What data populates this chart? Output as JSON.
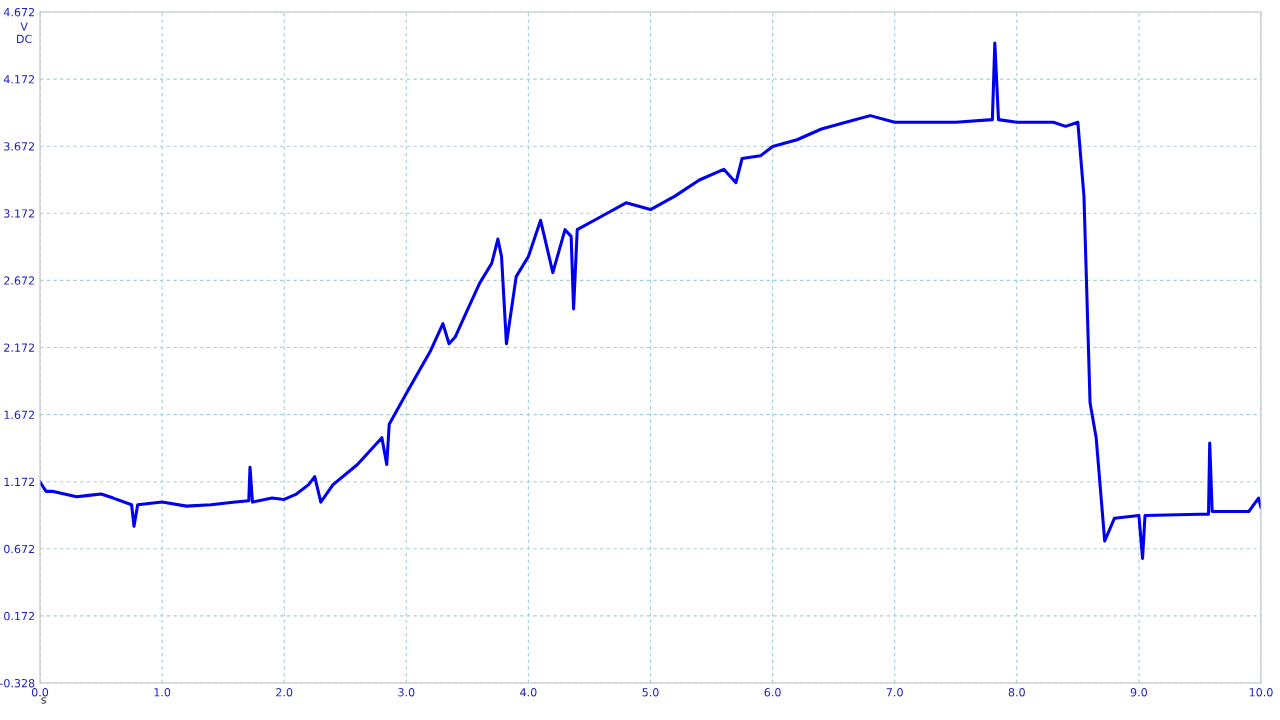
{
  "chart_data": {
    "type": "line",
    "xlabel": "s",
    "ylabel": "V\nDC",
    "x": [
      0.0,
      0.05,
      0.1,
      0.2,
      0.3,
      0.4,
      0.5,
      0.6,
      0.75,
      0.77,
      0.8,
      1.0,
      1.2,
      1.4,
      1.6,
      1.71,
      1.72,
      1.74,
      1.9,
      2.0,
      2.1,
      2.2,
      2.25,
      2.3,
      2.4,
      2.6,
      2.8,
      2.84,
      2.86,
      3.0,
      3.2,
      3.3,
      3.35,
      3.4,
      3.5,
      3.6,
      3.7,
      3.75,
      3.78,
      3.82,
      3.9,
      4.0,
      4.1,
      4.2,
      4.3,
      4.35,
      4.37,
      4.4,
      4.6,
      4.8,
      5.0,
      5.2,
      5.4,
      5.6,
      5.7,
      5.75,
      5.9,
      6.0,
      6.2,
      6.4,
      6.6,
      6.8,
      7.0,
      7.5,
      7.8,
      7.82,
      7.85,
      8.0,
      8.3,
      8.4,
      8.5,
      8.55,
      8.6,
      8.65,
      8.72,
      8.8,
      9.0,
      9.03,
      9.05,
      9.5,
      9.57,
      9.58,
      9.6,
      9.9,
      9.98,
      10.0
    ],
    "series": [
      {
        "color": "#0000ee",
        "values": [
          1.17,
          1.1,
          1.1,
          1.08,
          1.06,
          1.07,
          1.08,
          1.05,
          1.0,
          0.84,
          1.0,
          1.02,
          0.99,
          1.0,
          1.02,
          1.03,
          1.28,
          1.02,
          1.05,
          1.04,
          1.08,
          1.15,
          1.21,
          1.02,
          1.15,
          1.3,
          1.5,
          1.3,
          1.6,
          1.83,
          2.15,
          2.35,
          2.2,
          2.25,
          2.45,
          2.65,
          2.8,
          2.98,
          2.85,
          2.2,
          2.7,
          2.85,
          3.12,
          2.73,
          3.05,
          3.0,
          2.46,
          3.05,
          3.15,
          3.25,
          3.2,
          3.3,
          3.42,
          3.5,
          3.4,
          3.58,
          3.6,
          3.67,
          3.72,
          3.8,
          3.85,
          3.9,
          3.85,
          3.85,
          3.87,
          4.44,
          3.87,
          3.85,
          3.85,
          3.82,
          3.85,
          3.3,
          1.76,
          1.5,
          0.73,
          0.9,
          0.92,
          0.6,
          0.92,
          0.93,
          0.93,
          1.46,
          0.95,
          0.95,
          1.05,
          0.98
        ]
      }
    ],
    "xlim": [
      0,
      10
    ],
    "ylim": [
      -0.328,
      4.672
    ],
    "xticks": [
      {
        "value": 0,
        "label": "0.0"
      },
      {
        "value": 1,
        "label": "1.0"
      },
      {
        "value": 2,
        "label": "2.0"
      },
      {
        "value": 3,
        "label": "3.0"
      },
      {
        "value": 4,
        "label": "4.0"
      },
      {
        "value": 5,
        "label": "5.0"
      },
      {
        "value": 6,
        "label": "6.0"
      },
      {
        "value": 7,
        "label": "7.0"
      },
      {
        "value": 8,
        "label": "8.0"
      },
      {
        "value": 9,
        "label": "9.0"
      },
      {
        "value": 10,
        "label": "10.0"
      }
    ],
    "yticks": [
      -0.328,
      0.172,
      0.672,
      1.172,
      1.672,
      2.172,
      2.672,
      3.172,
      3.672,
      4.172,
      4.672
    ],
    "grid": true,
    "marker": "none",
    "line_style": "solid"
  }
}
